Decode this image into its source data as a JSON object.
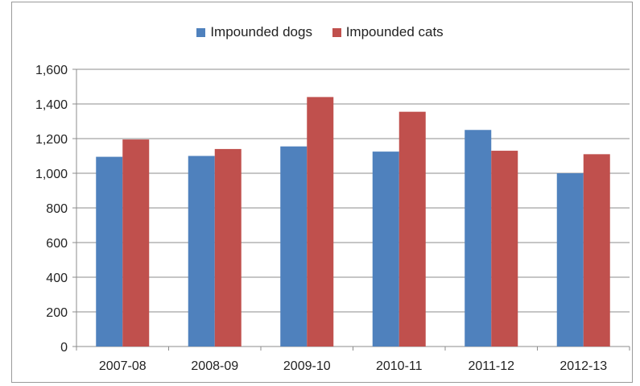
{
  "chart_data": {
    "type": "bar",
    "categories": [
      "2007-08",
      "2008-09",
      "2009-10",
      "2010-11",
      "2011-12",
      "2012-13"
    ],
    "series": [
      {
        "name": "Impounded dogs",
        "color": "#4f81bd",
        "values": [
          1095,
          1100,
          1155,
          1125,
          1250,
          1000
        ]
      },
      {
        "name": "Impounded cats",
        "color": "#c0504d",
        "values": [
          1195,
          1140,
          1440,
          1355,
          1130,
          1110
        ]
      }
    ],
    "ylim": [
      0,
      1600
    ],
    "yticks": [
      0,
      200,
      400,
      600,
      800,
      1000,
      1200,
      1400,
      1600
    ],
    "ytick_labels": [
      "0",
      "200",
      "400",
      "600",
      "800",
      "1,000",
      "1,200",
      "1,400",
      "1,600"
    ],
    "grid": true,
    "legend_position": "top-center"
  }
}
